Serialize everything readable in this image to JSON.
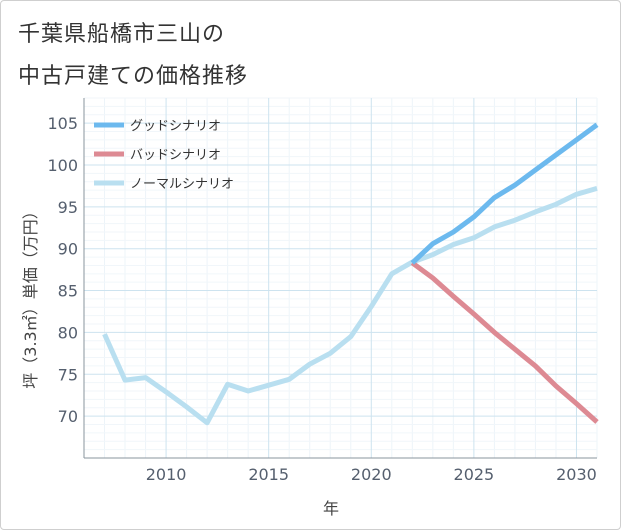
{
  "title_line1": "千葉県船橋市三山の",
  "title_line2": "中古戸建ての価格推移",
  "chart_data": {
    "type": "line",
    "title": "千葉県船橋市三山の中古戸建ての価格推移",
    "xlabel": "年",
    "ylabel": "坪（3.3㎡）単価（万円）",
    "xlim": [
      2006,
      2031
    ],
    "ylim": [
      65,
      108
    ],
    "xticks": [
      2010,
      2015,
      2020,
      2025,
      2030
    ],
    "yticks": [
      70,
      75,
      80,
      85,
      90,
      95,
      100,
      105
    ],
    "legend_position": "top-left",
    "series": [
      {
        "name": "グッドシナリオ",
        "color": "#6cb9ee",
        "points": [
          [
            2022,
            88.3
          ],
          [
            2023,
            90.6
          ],
          [
            2024,
            92.0
          ],
          [
            2025,
            93.8
          ],
          [
            2026,
            96.1
          ],
          [
            2027,
            97.6
          ],
          [
            2028,
            99.4
          ],
          [
            2029,
            101.2
          ],
          [
            2030,
            103.0
          ],
          [
            2031,
            104.8
          ]
        ]
      },
      {
        "name": "バッドシナリオ",
        "color": "#dd8a93",
        "points": [
          [
            2022,
            88.3
          ],
          [
            2023,
            86.5
          ],
          [
            2024,
            84.3
          ],
          [
            2025,
            82.2
          ],
          [
            2026,
            80.0
          ],
          [
            2027,
            78.0
          ],
          [
            2028,
            76.0
          ],
          [
            2029,
            73.6
          ],
          [
            2030,
            71.5
          ],
          [
            2031,
            69.3
          ]
        ]
      },
      {
        "name": "ノーマルシナリオ",
        "color": "#b9dff0",
        "points": [
          [
            2007,
            79.8
          ],
          [
            2008,
            74.3
          ],
          [
            2009,
            74.6
          ],
          [
            2010,
            72.9
          ],
          [
            2011,
            71.1
          ],
          [
            2012,
            69.2
          ],
          [
            2013,
            73.8
          ],
          [
            2014,
            73.0
          ],
          [
            2015,
            73.7
          ],
          [
            2016,
            74.4
          ],
          [
            2017,
            76.2
          ],
          [
            2018,
            77.5
          ],
          [
            2019,
            79.5
          ],
          [
            2020,
            83.1
          ],
          [
            2021,
            87.0
          ],
          [
            2022,
            88.4
          ],
          [
            2023,
            89.3
          ],
          [
            2024,
            90.5
          ],
          [
            2025,
            91.3
          ],
          [
            2026,
            92.6
          ],
          [
            2027,
            93.4
          ],
          [
            2028,
            94.4
          ],
          [
            2029,
            95.3
          ],
          [
            2030,
            96.5
          ],
          [
            2031,
            97.2
          ]
        ]
      }
    ]
  }
}
